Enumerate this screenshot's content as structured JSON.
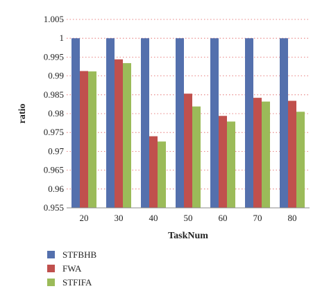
{
  "chart_data": {
    "type": "bar",
    "xlabel": "TaskNum",
    "ylabel": "ratio",
    "categories": [
      "20",
      "30",
      "40",
      "50",
      "60",
      "70",
      "80"
    ],
    "ylim": [
      0.955,
      1.005
    ],
    "yticks": [
      "0.955",
      "0.96",
      "0.965",
      "0.97",
      "0.975",
      "0.98",
      "0.985",
      "0.99",
      "0.995",
      "1",
      "1.005"
    ],
    "grid": "horizontal dotted, red",
    "legend_position": "bottom-left",
    "series": [
      {
        "name": "STFBHB",
        "color": "#5470ad",
        "values": [
          1,
          1,
          1,
          1,
          1,
          1,
          1
        ]
      },
      {
        "name": "FWA",
        "color": "#c0504d",
        "values": [
          0.9913,
          0.9944,
          0.974,
          0.9853,
          0.9794,
          0.9842,
          0.9834
        ]
      },
      {
        "name": "STFIFA",
        "color": "#9bbb59",
        "values": [
          0.9912,
          0.9934,
          0.9726,
          0.9819,
          0.9779,
          0.9832,
          0.9805
        ]
      }
    ]
  }
}
